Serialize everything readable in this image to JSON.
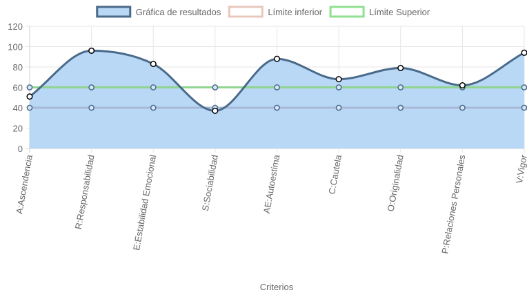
{
  "chart_data": {
    "type": "line",
    "xlabel": "Criterios",
    "ylabel": "",
    "ylim": [
      0,
      120
    ],
    "ytick_step": 20,
    "yticks": [
      "0",
      "20",
      "40",
      "60",
      "80",
      "100",
      "120"
    ],
    "grid": true,
    "legend_position": "top",
    "categories": [
      "A:Ascendencia",
      "R:Responsabilidad",
      "E:Estabilidad Emocional",
      "S:Sociabilidad",
      "AE:Autoestima",
      "C:Cautela",
      "O:Originalidad",
      "P:Relaciones Personales",
      "V:Vigor"
    ],
    "series": [
      {
        "name": "Gráfica de resultados",
        "values": [
          51,
          96,
          83,
          37,
          88,
          68,
          79,
          62,
          94
        ],
        "line_color": "#4a6a8a",
        "fill_color": "#b8d8f6",
        "legend_fill": "#b8d8f6",
        "legend_border": "#4a6a8a",
        "filled": true,
        "smooth": true
      },
      {
        "name": "Límite inferior",
        "values": [
          40,
          40,
          40,
          40,
          40,
          40,
          40,
          40,
          40
        ],
        "line_color": "#a7b9d6",
        "legend_fill": "#ffffff",
        "legend_border": "#e8c8bd",
        "filled": false,
        "smooth": false
      },
      {
        "name": "Límite Superior",
        "values": [
          60,
          60,
          60,
          60,
          60,
          60,
          60,
          60,
          60
        ],
        "line_color": "#8fd48f",
        "legend_fill": "#ffffff",
        "legend_border": "#90e090",
        "filled": false,
        "smooth": false
      }
    ]
  }
}
